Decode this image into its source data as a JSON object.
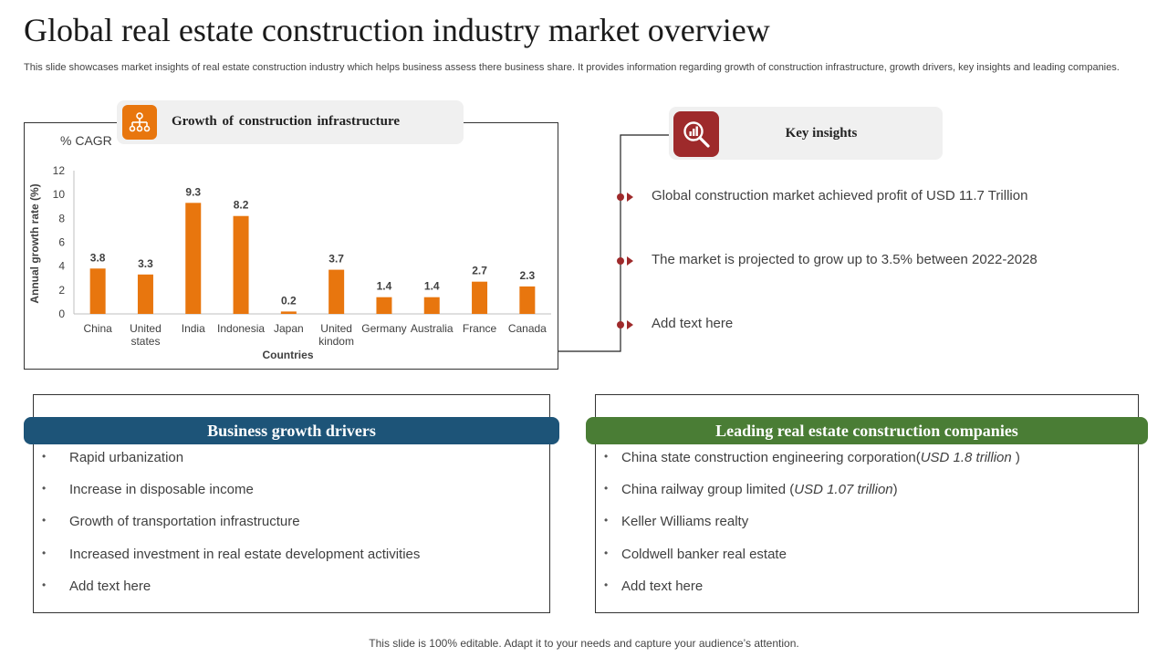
{
  "header": {
    "title": "Global real estate construction industry market overview",
    "subtitle": "This slide showcases market insights of real estate construction industry which helps business assess there business share. It provides information regarding growth of construction infrastructure, growth drivers, key insights and leading companies."
  },
  "chart_section": {
    "label": "Growth  of construction   infrastructure",
    "icon": "org-chart-icon",
    "accent": "#e8760e"
  },
  "chart_data": {
    "type": "bar",
    "title": "% CAGR",
    "xlabel": "Countries",
    "ylabel": "Annual growth rate (%)",
    "ylim": [
      0,
      12
    ],
    "yticks": [
      0,
      2,
      4,
      6,
      8,
      10,
      12
    ],
    "categories": [
      "China",
      "United states",
      "India",
      "Indonesia",
      "Japan",
      "United kindom",
      "Germany",
      "Australia",
      "France",
      "Canada"
    ],
    "values": [
      3.8,
      3.3,
      9.3,
      8.2,
      0.2,
      3.7,
      1.4,
      1.4,
      2.7,
      2.3
    ],
    "bar_color": "#e8760e",
    "grid": false
  },
  "key_insights": {
    "title": "Key insights",
    "icon": "magnifier-chart-icon",
    "accent": "#9e2a2b",
    "items": [
      "Global construction market achieved profit of USD 11.7 Trillion",
      "The market is projected to grow up to 3.5% between 2022-2028",
      "Add text here"
    ]
  },
  "drivers": {
    "title": "Business growth drivers",
    "color": "#1d5478",
    "items": [
      "Rapid urbanization",
      "Increase in disposable income",
      "Growth of transportation infrastructure",
      "Increased investment in real estate development activities",
      "Add text here"
    ]
  },
  "companies": {
    "title": "Leading real estate construction companies",
    "color": "#4a7d35",
    "items": [
      {
        "name": "China state construction engineering  corporation(",
        "value": "USD 1.8 trillion ",
        "suffix": ")"
      },
      {
        "name": "China railway group limited (",
        "value": "USD 1.07 trillion",
        "suffix": ")"
      },
      {
        "name": "Keller Williams realty",
        "value": "",
        "suffix": ""
      },
      {
        "name": "Coldwell banker real estate",
        "value": "",
        "suffix": ""
      },
      {
        "name": "Add text here",
        "value": "",
        "suffix": ""
      }
    ]
  },
  "footer": {
    "text": "This slide is 100% editable. Adapt it to your needs and capture your audience’s attention."
  }
}
